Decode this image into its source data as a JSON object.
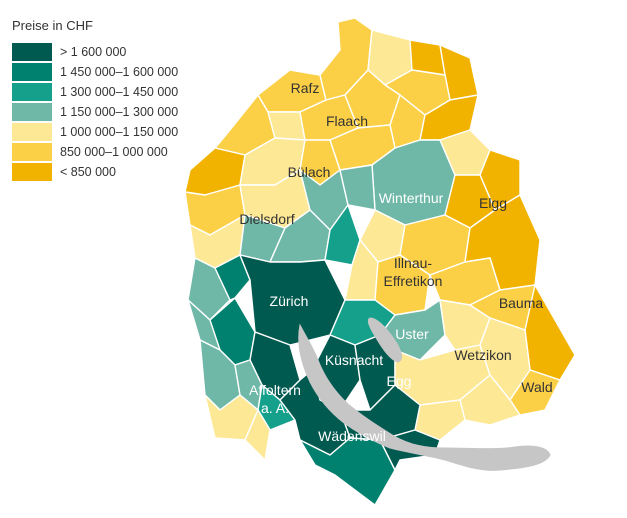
{
  "legend": {
    "title": "Preise in CHF",
    "items": [
      {
        "label": "> 1 600 000",
        "color": "#005a50"
      },
      {
        "label": "1 450 000–1 600 000",
        "color": "#00806e"
      },
      {
        "label": "1 300 000–1 450 000",
        "color": "#15a08c"
      },
      {
        "label": "1 150 000–1 300 000",
        "color": "#6fb8a8"
      },
      {
        "label": "1 000 000–1 150 000",
        "color": "#fde896"
      },
      {
        "label": "850 000–1 000 000",
        "color": "#fcd046"
      },
      {
        "label": "< 850 000",
        "color": "#f2b300"
      }
    ]
  },
  "colors": {
    "lake": "#c6c6c6"
  },
  "labels": {
    "rafz": "Rafz",
    "flaach": "Flaach",
    "buelach": "Bülach",
    "winterthur": "Winterthur",
    "elgg": "Elgg",
    "dielsdorf": "Dielsdorf",
    "illnau1": "Illnau-",
    "illnau2": "Effretikon",
    "zuerich": "Zürich",
    "bauma": "Bauma",
    "uster": "Uster",
    "kuesnacht": "Küsnacht",
    "wetzikon": "Wetzikon",
    "egg": "Egg",
    "affoltern1": "Affoltern",
    "affoltern2": "a. A.",
    "wald": "Wald",
    "waedenswil": "Wädenswil"
  }
}
